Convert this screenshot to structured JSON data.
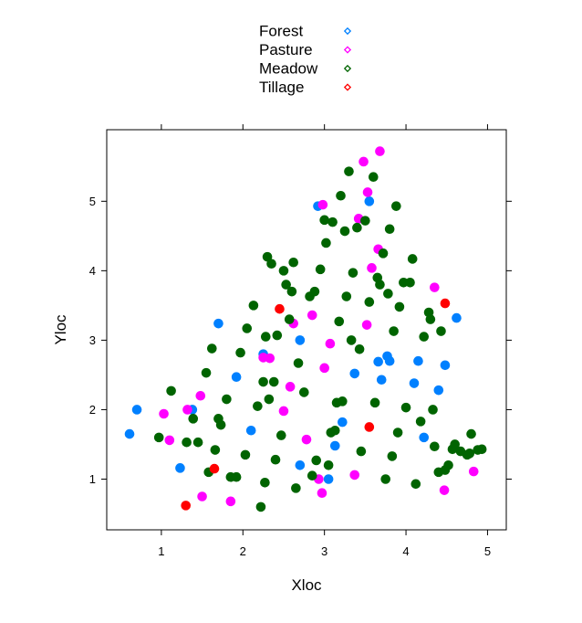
{
  "chart_data": {
    "type": "scatter",
    "title": "",
    "xlabel": "Xloc",
    "ylabel": "Yloc",
    "xlim": [
      0.33,
      5.23
    ],
    "ylim": [
      0.27,
      6.03
    ],
    "xticks": [
      1,
      2,
      3,
      4,
      5
    ],
    "yticks": [
      1,
      2,
      3,
      4,
      5
    ],
    "grid": false,
    "legend_position": "top-center",
    "series": [
      {
        "name": "Forest",
        "color": "#0080ff",
        "points": [
          [
            0.61,
            1.65
          ],
          [
            0.7,
            2.0
          ],
          [
            1.23,
            1.16
          ],
          [
            1.38,
            2.0
          ],
          [
            1.7,
            3.24
          ],
          [
            1.92,
            2.47
          ],
          [
            2.1,
            1.7
          ],
          [
            2.25,
            2.8
          ],
          [
            2.7,
            3.0
          ],
          [
            2.7,
            1.2
          ],
          [
            2.92,
            4.93
          ],
          [
            3.05,
            1.0
          ],
          [
            3.13,
            1.48
          ],
          [
            3.22,
            1.82
          ],
          [
            3.37,
            2.52
          ],
          [
            3.55,
            5.0
          ],
          [
            3.66,
            2.69
          ],
          [
            3.7,
            2.43
          ],
          [
            3.77,
            2.77
          ],
          [
            3.8,
            2.7
          ],
          [
            4.1,
            2.38
          ],
          [
            4.15,
            2.7
          ],
          [
            4.22,
            1.6
          ],
          [
            4.4,
            2.28
          ],
          [
            4.48,
            2.64
          ],
          [
            4.62,
            3.32
          ]
        ]
      },
      {
        "name": "Pasture",
        "color": "#ff00ff",
        "points": [
          [
            1.03,
            1.94
          ],
          [
            1.1,
            1.56
          ],
          [
            1.32,
            2.0
          ],
          [
            1.48,
            2.2
          ],
          [
            1.5,
            0.75
          ],
          [
            1.85,
            0.68
          ],
          [
            2.25,
            2.75
          ],
          [
            2.33,
            2.74
          ],
          [
            2.5,
            1.98
          ],
          [
            2.58,
            2.33
          ],
          [
            2.62,
            3.24
          ],
          [
            2.78,
            1.57
          ],
          [
            2.85,
            3.36
          ],
          [
            2.93,
            1.0
          ],
          [
            2.97,
            0.8
          ],
          [
            2.98,
            4.95
          ],
          [
            3.0,
            2.6
          ],
          [
            3.07,
            2.95
          ],
          [
            3.37,
            1.06
          ],
          [
            3.42,
            4.75
          ],
          [
            3.48,
            5.57
          ],
          [
            3.52,
            3.22
          ],
          [
            3.53,
            5.13
          ],
          [
            3.58,
            4.04
          ],
          [
            3.66,
            4.31
          ],
          [
            3.68,
            5.72
          ],
          [
            4.35,
            3.76
          ],
          [
            4.47,
            0.84
          ],
          [
            4.83,
            1.11
          ]
        ]
      },
      {
        "name": "Meadow",
        "color": "#006400",
        "points": [
          [
            0.97,
            1.6
          ],
          [
            1.12,
            2.27
          ],
          [
            1.31,
            1.53
          ],
          [
            1.39,
            1.87
          ],
          [
            1.45,
            1.53
          ],
          [
            1.55,
            2.53
          ],
          [
            1.58,
            1.1
          ],
          [
            1.62,
            2.88
          ],
          [
            1.66,
            1.42
          ],
          [
            1.7,
            1.87
          ],
          [
            1.73,
            1.78
          ],
          [
            1.8,
            2.15
          ],
          [
            1.85,
            1.03
          ],
          [
            1.92,
            1.03
          ],
          [
            1.97,
            2.82
          ],
          [
            2.03,
            1.35
          ],
          [
            2.05,
            3.17
          ],
          [
            2.13,
            3.5
          ],
          [
            2.18,
            2.05
          ],
          [
            2.22,
            0.6
          ],
          [
            2.25,
            2.4
          ],
          [
            2.27,
            0.95
          ],
          [
            2.28,
            3.05
          ],
          [
            2.3,
            4.2
          ],
          [
            2.32,
            2.15
          ],
          [
            2.35,
            4.1
          ],
          [
            2.38,
            2.4
          ],
          [
            2.4,
            1.28
          ],
          [
            2.42,
            3.07
          ],
          [
            2.47,
            1.63
          ],
          [
            2.5,
            4.0
          ],
          [
            2.53,
            3.8
          ],
          [
            2.57,
            3.3
          ],
          [
            2.6,
            3.7
          ],
          [
            2.62,
            4.12
          ],
          [
            2.65,
            0.87
          ],
          [
            2.68,
            2.67
          ],
          [
            2.75,
            2.25
          ],
          [
            2.82,
            3.63
          ],
          [
            2.85,
            1.05
          ],
          [
            2.88,
            3.7
          ],
          [
            2.9,
            1.27
          ],
          [
            2.95,
            4.02
          ],
          [
            3.0,
            4.73
          ],
          [
            3.02,
            4.4
          ],
          [
            3.05,
            1.2
          ],
          [
            3.08,
            1.67
          ],
          [
            3.1,
            4.7
          ],
          [
            3.13,
            1.7
          ],
          [
            3.15,
            2.1
          ],
          [
            3.18,
            3.27
          ],
          [
            3.2,
            5.08
          ],
          [
            3.22,
            2.12
          ],
          [
            3.25,
            4.57
          ],
          [
            3.27,
            3.63
          ],
          [
            3.3,
            5.43
          ],
          [
            3.33,
            3.0
          ],
          [
            3.35,
            3.97
          ],
          [
            3.4,
            4.62
          ],
          [
            3.43,
            2.87
          ],
          [
            3.45,
            1.4
          ],
          [
            3.5,
            4.72
          ],
          [
            3.55,
            3.55
          ],
          [
            3.6,
            5.35
          ],
          [
            3.62,
            2.1
          ],
          [
            3.65,
            3.9
          ],
          [
            3.68,
            3.8
          ],
          [
            3.72,
            4.25
          ],
          [
            3.75,
            1.0
          ],
          [
            3.78,
            3.67
          ],
          [
            3.8,
            4.6
          ],
          [
            3.83,
            1.33
          ],
          [
            3.85,
            3.13
          ],
          [
            3.88,
            4.93
          ],
          [
            3.9,
            1.67
          ],
          [
            3.92,
            3.48
          ],
          [
            3.97,
            3.83
          ],
          [
            4.0,
            2.03
          ],
          [
            4.05,
            3.83
          ],
          [
            4.08,
            4.17
          ],
          [
            4.12,
            0.93
          ],
          [
            4.18,
            1.83
          ],
          [
            4.22,
            3.05
          ],
          [
            4.28,
            3.4
          ],
          [
            4.3,
            3.3
          ],
          [
            4.33,
            2.0
          ],
          [
            4.35,
            1.47
          ],
          [
            4.4,
            1.1
          ],
          [
            4.43,
            3.13
          ],
          [
            4.48,
            1.13
          ],
          [
            4.52,
            1.2
          ],
          [
            4.57,
            1.43
          ],
          [
            4.6,
            1.5
          ],
          [
            4.67,
            1.4
          ],
          [
            4.75,
            1.35
          ],
          [
            4.78,
            1.37
          ],
          [
            4.8,
            1.65
          ],
          [
            4.88,
            1.42
          ],
          [
            4.93,
            1.43
          ]
        ]
      },
      {
        "name": "Tillage",
        "color": "#ff0000",
        "points": [
          [
            1.3,
            0.62
          ],
          [
            1.65,
            1.15
          ],
          [
            2.45,
            3.45
          ],
          [
            3.55,
            1.75
          ],
          [
            4.48,
            3.53
          ]
        ]
      }
    ]
  }
}
